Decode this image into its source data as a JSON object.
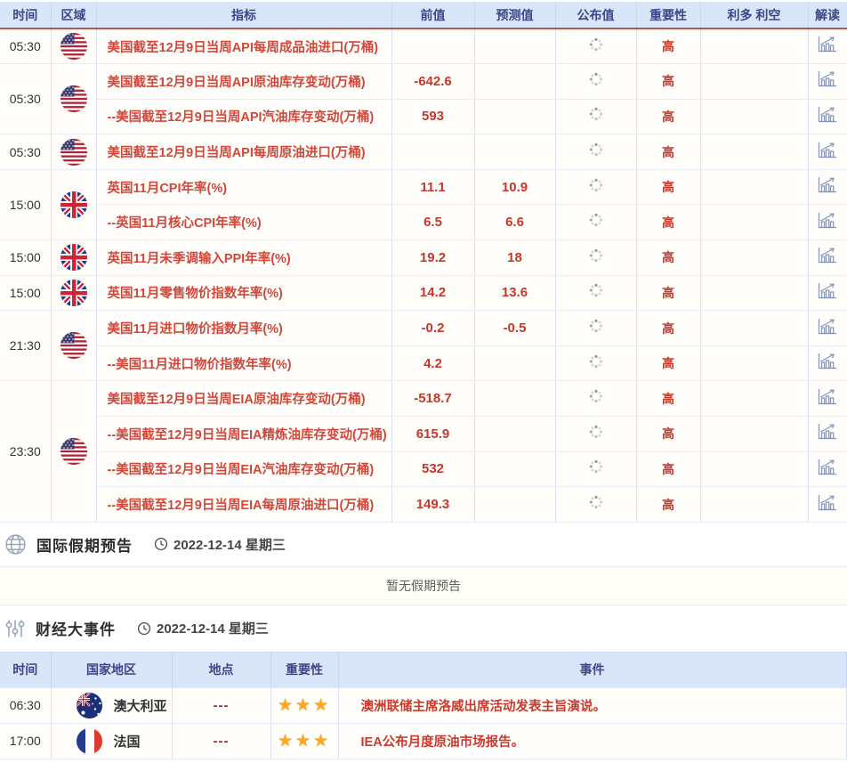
{
  "calendar_table": {
    "headers": {
      "time": "时间",
      "region": "区域",
      "indicator": "指标",
      "previous": "前值",
      "forecast": "预测值",
      "published": "公布值",
      "importance": "重要性",
      "bull_bear": "利多 利空",
      "interpret": "解读"
    },
    "importance_label": "高",
    "groups": [
      {
        "time": "05:30",
        "flag": "us",
        "rows": [
          {
            "indicator": "美国截至12月9日当周API每周成品油进口(万桶)",
            "previous": "",
            "forecast": ""
          }
        ]
      },
      {
        "time": "05:30",
        "flag": "us",
        "rows": [
          {
            "indicator": "美国截至12月9日当周API原油库存变动(万桶)",
            "previous": "-642.6",
            "forecast": ""
          },
          {
            "indicator": "--美国截至12月9日当周API汽油库存变动(万桶)",
            "previous": "593",
            "forecast": ""
          }
        ]
      },
      {
        "time": "05:30",
        "flag": "us",
        "rows": [
          {
            "indicator": "美国截至12月9日当周API每周原油进口(万桶)",
            "previous": "",
            "forecast": ""
          }
        ]
      },
      {
        "time": "15:00",
        "flag": "uk",
        "rows": [
          {
            "indicator": "英国11月CPI年率(%)",
            "previous": "11.1",
            "forecast": "10.9"
          },
          {
            "indicator": "--英国11月核心CPI年率(%)",
            "previous": "6.5",
            "forecast": "6.6"
          }
        ]
      },
      {
        "time": "15:00",
        "flag": "uk",
        "rows": [
          {
            "indicator": "英国11月未季调输入PPI年率(%)",
            "previous": "19.2",
            "forecast": "18"
          }
        ]
      },
      {
        "time": "15:00",
        "flag": "uk",
        "rows": [
          {
            "indicator": "英国11月零售物价指数年率(%)",
            "previous": "14.2",
            "forecast": "13.6"
          }
        ]
      },
      {
        "time": "21:30",
        "flag": "us",
        "rows": [
          {
            "indicator": "美国11月进口物价指数月率(%)",
            "previous": "-0.2",
            "forecast": "-0.5"
          },
          {
            "indicator": "--美国11月进口物价指数年率(%)",
            "previous": "4.2",
            "forecast": ""
          }
        ]
      },
      {
        "time": "23:30",
        "flag": "us",
        "rows": [
          {
            "indicator": "美国截至12月9日当周EIA原油库存变动(万桶)",
            "previous": "-518.7",
            "forecast": ""
          },
          {
            "indicator": "--美国截至12月9日当周EIA精炼油库存变动(万桶)",
            "previous": "615.9",
            "forecast": ""
          },
          {
            "indicator": "--美国截至12月9日当周EIA汽油库存变动(万桶)",
            "previous": "532",
            "forecast": ""
          },
          {
            "indicator": "--美国截至12月9日当周EIA每周原油进口(万桶)",
            "previous": "149.3",
            "forecast": ""
          }
        ]
      }
    ]
  },
  "holiday_section": {
    "title": "国际假期预告",
    "date": "2022-12-14 星期三",
    "empty_text": "暂无假期预告"
  },
  "events_section": {
    "title": "财经大事件",
    "date": "2022-12-14 星期三",
    "headers": {
      "time": "时间",
      "country": "国家地区",
      "location": "地点",
      "importance": "重要性",
      "event": "事件"
    },
    "rows": [
      {
        "time": "06:30",
        "flag": "au",
        "country": "澳大利亚",
        "location": "---",
        "stars": 3,
        "event": "澳洲联储主席洛威出席活动发表主旨演说。"
      },
      {
        "time": "17:00",
        "flag": "fr",
        "country": "法国",
        "location": "---",
        "stars": 3,
        "event": "IEA公布月度原油市场报告。"
      }
    ]
  },
  "icons": {
    "star_glyph": "★",
    "published_pending": "spinner-icon",
    "interpret": "bar-chart-arrow-icon",
    "holiday_section": "globe-icon",
    "events_section": "sliders-icon",
    "date_prefix": "clock-icon"
  },
  "colors": {
    "header_bg": "#d9e5f8",
    "header_text": "#3d4687",
    "header_underline": "#b4574d",
    "indicator_red": "#d1473a",
    "value_red": "#c63829",
    "star_gold": "#ffa81a",
    "grid_line": "#dbe3f2"
  }
}
